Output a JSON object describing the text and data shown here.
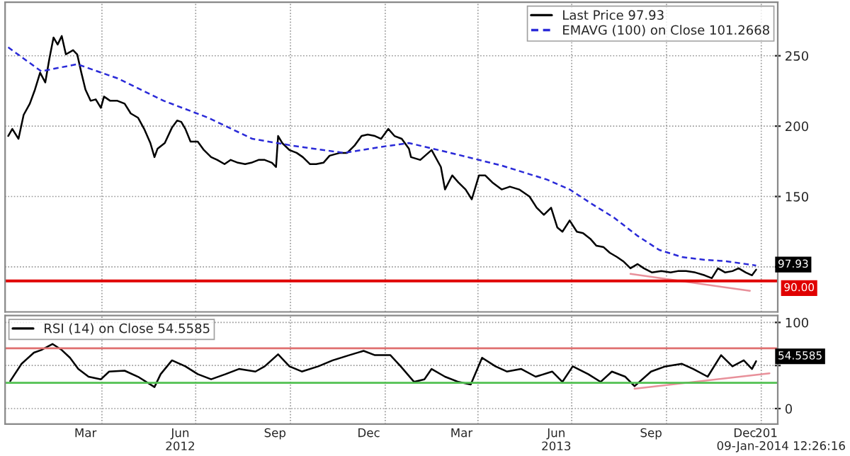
{
  "chart_data": [
    {
      "type": "line",
      "xlim": [
        "2011-12-29",
        "2014-01-17"
      ],
      "ylim": [
        68,
        288
      ],
      "xticks": [
        {
          "value": "2012-04-01",
          "label": null
        },
        {
          "value": "2012-07-01",
          "label": null
        },
        {
          "value": "2012-10-01",
          "label": null
        },
        {
          "value": "2013-01-01",
          "label": null
        },
        {
          "value": "2013-04-01",
          "label": null
        },
        {
          "value": "2013-07-01",
          "label": null
        },
        {
          "value": "2013-10-01",
          "label": null
        },
        {
          "value": "2014-01-01",
          "label": null
        }
      ],
      "yticks": [
        {
          "value": 100,
          "label": null
        },
        150,
        200,
        250
      ],
      "tick_labels": "y",
      "grid": true,
      "legend": "top right",
      "series": [
        {
          "name": "Last Price 97.93",
          "color": "#000000",
          "line_style": "solid",
          "x": [
            "2012-01-01",
            "2012-01-05",
            "2012-01-11",
            "2012-01-16",
            "2012-01-22",
            "2012-01-27",
            "2012-02-01",
            "2012-02-06",
            "2012-02-10",
            "2012-02-14",
            "2012-02-18",
            "2012-02-22",
            "2012-02-26",
            "2012-03-04",
            "2012-03-08",
            "2012-03-12",
            "2012-03-16",
            "2012-03-21",
            "2012-03-26",
            "2012-03-31",
            "2012-04-03",
            "2012-04-09",
            "2012-04-16",
            "2012-04-23",
            "2012-04-29",
            "2012-05-06",
            "2012-05-12",
            "2012-05-18",
            "2012-05-22",
            "2012-05-25",
            "2012-06-01",
            "2012-06-08",
            "2012-06-13",
            "2012-06-17",
            "2012-06-21",
            "2012-06-26",
            "2012-07-03",
            "2012-07-09",
            "2012-07-16",
            "2012-07-22",
            "2012-07-29",
            "2012-08-04",
            "2012-08-11",
            "2012-08-18",
            "2012-08-24",
            "2012-08-31",
            "2012-09-06",
            "2012-09-13",
            "2012-09-17",
            "2012-09-19",
            "2012-09-23",
            "2012-09-30",
            "2012-10-07",
            "2012-10-13",
            "2012-10-20",
            "2012-10-26",
            "2012-11-02",
            "2012-11-08",
            "2012-11-18",
            "2012-11-25",
            "2012-12-02",
            "2012-12-09",
            "2012-12-15",
            "2012-12-22",
            "2012-12-28",
            "2013-01-04",
            "2013-01-10",
            "2013-01-17",
            "2013-01-24",
            "2013-01-26",
            "2013-02-04",
            "2013-02-15",
            "2013-02-24",
            "2013-02-28",
            "2013-03-07",
            "2013-03-13",
            "2013-03-20",
            "2013-03-26",
            "2013-04-02",
            "2013-04-08",
            "2013-04-15",
            "2013-04-24",
            "2013-05-02",
            "2013-05-11",
            "2013-05-21",
            "2013-05-28",
            "2013-06-04",
            "2013-06-11",
            "2013-06-17",
            "2013-06-22",
            "2013-06-29",
            "2013-07-06",
            "2013-07-12",
            "2013-07-19",
            "2013-07-25",
            "2013-08-01",
            "2013-08-07",
            "2013-08-14",
            "2013-08-20",
            "2013-08-27",
            "2013-09-03",
            "2013-09-09",
            "2013-09-17",
            "2013-09-26",
            "2013-10-05",
            "2013-10-12",
            "2013-10-20",
            "2013-10-29",
            "2013-11-07",
            "2013-11-14",
            "2013-11-20",
            "2013-11-27",
            "2013-12-04",
            "2013-12-10",
            "2013-12-17",
            "2013-12-23",
            "2013-12-27"
          ],
          "values": [
            193,
            198,
            191,
            208,
            216,
            226,
            238,
            231,
            248,
            263,
            258,
            264,
            251,
            254,
            251,
            238,
            226,
            218,
            219,
            213,
            221,
            218,
            218,
            216,
            209,
            206,
            198,
            188,
            178,
            184,
            188,
            199,
            204,
            203,
            198,
            189,
            189,
            183,
            178,
            176,
            173,
            176,
            174,
            173,
            174,
            176,
            176,
            174,
            171,
            193,
            188,
            183,
            181,
            178,
            173,
            173,
            174,
            179,
            181,
            181,
            186,
            193,
            194,
            193,
            191,
            198,
            193,
            191,
            184,
            178,
            176,
            183,
            171,
            155,
            165,
            160,
            155,
            148,
            165,
            165,
            160,
            155,
            157,
            155,
            150,
            142,
            137,
            142,
            128,
            125,
            133,
            125,
            124,
            120,
            115,
            114,
            110,
            107,
            104,
            99,
            102,
            99,
            96,
            97,
            96,
            97,
            97,
            96,
            94,
            92,
            99,
            96,
            97,
            99,
            96,
            94,
            98
          ]
        },
        {
          "name": "EMAVG (100) on Close 101.2668",
          "color": "#2a2ad8",
          "line_style": "dashed",
          "x": [
            "2012-01-01",
            "2012-02-02",
            "2012-03-08",
            "2012-04-16",
            "2012-05-31",
            "2012-07-13",
            "2012-08-25",
            "2012-10-04",
            "2012-11-22",
            "2013-01-04",
            "2013-01-24",
            "2013-03-11",
            "2013-04-24",
            "2013-06-07",
            "2013-06-29",
            "2013-07-20",
            "2013-08-11",
            "2013-09-03",
            "2013-09-24",
            "2013-10-16",
            "2013-11-07",
            "2013-11-28",
            "2013-12-27"
          ],
          "values": [
            256,
            239,
            244,
            234,
            218,
            206,
            191,
            186,
            181,
            186,
            188,
            180,
            172,
            162,
            155,
            145,
            135,
            122,
            112,
            107,
            105,
            104,
            101
          ]
        },
        {
          "color": "#e8909a",
          "line_style": "solid",
          "x": [
            "2013-08-27",
            "2013-12-21"
          ],
          "values": [
            95,
            83
          ]
        }
      ],
      "ref_lines": [
        {
          "axis": "y",
          "value": 90,
          "label": "90.00",
          "color": "#e00000"
        }
      ],
      "annotations": [
        {
          "text": "97.93",
          "x": "2013-12-27",
          "y": 97.93
        }
      ]
    },
    {
      "type": "line",
      "xlim": [
        "2011-12-29",
        "2014-01-17"
      ],
      "ylim": [
        -18,
        108
      ],
      "xticks": [
        {
          "value": "2012-04-01",
          "label": null
        },
        {
          "value": "2012-07-01",
          "label": null
        },
        {
          "value": "2012-10-01",
          "label": null
        },
        {
          "value": "2013-01-01",
          "label": null
        },
        {
          "value": "2013-04-01",
          "label": null
        },
        {
          "value": "2013-07-01",
          "label": null
        },
        {
          "value": "2013-10-01",
          "label": null
        },
        {
          "value": "2014-01-01",
          "label": null
        },
        {
          "value": "2012-03-16",
          "label": "Mar"
        },
        {
          "value": "2012-06-16",
          "label": "Jun\n2012"
        },
        {
          "value": "2012-09-16",
          "label": "Sep"
        },
        {
          "value": "2012-12-16",
          "label": "Dec"
        },
        {
          "value": "2013-03-16",
          "label": "Mar"
        },
        {
          "value": "2013-06-16",
          "label": "Jun\n2013"
        },
        {
          "value": "2013-09-16",
          "label": "Sep"
        },
        {
          "value": "2013-12-16",
          "label": "Dec"
        },
        {
          "value": "2014-01-06",
          "label": "201"
        }
      ],
      "yticks": [
        0,
        {
          "value": 50,
          "label": null
        },
        100
      ],
      "grid": true,
      "legend": "top left",
      "series": [
        {
          "name": "RSI (14) on Close 54.5585",
          "color": "#000000",
          "line_style": "solid",
          "x": [
            "2012-01-03",
            "2012-01-14",
            "2012-01-26",
            "2012-02-02",
            "2012-02-13",
            "2012-02-22",
            "2012-03-01",
            "2012-03-09",
            "2012-03-19",
            "2012-03-31",
            "2012-04-08",
            "2012-04-23",
            "2012-05-06",
            "2012-05-22",
            "2012-05-28",
            "2012-06-08",
            "2012-06-21",
            "2012-07-03",
            "2012-07-16",
            "2012-07-30",
            "2012-08-12",
            "2012-08-28",
            "2012-09-06",
            "2012-09-19",
            "2012-09-30",
            "2012-10-12",
            "2012-10-28",
            "2012-11-11",
            "2012-11-27",
            "2012-12-11",
            "2012-12-22",
            "2013-01-06",
            "2013-01-16",
            "2013-01-29",
            "2013-02-08",
            "2013-02-15",
            "2013-02-28",
            "2013-03-13",
            "2013-03-25",
            "2013-04-05",
            "2013-04-18",
            "2013-04-29",
            "2013-05-13",
            "2013-05-27",
            "2013-06-12",
            "2013-06-22",
            "2013-07-02",
            "2013-07-17",
            "2013-07-29",
            "2013-08-09",
            "2013-08-22",
            "2013-08-31",
            "2013-09-16",
            "2013-09-30",
            "2013-10-16",
            "2013-10-27",
            "2013-11-10",
            "2013-11-23",
            "2013-12-04",
            "2013-12-15",
            "2013-12-23",
            "2013-12-27"
          ],
          "values": [
            32,
            52,
            65,
            68,
            75,
            68,
            59,
            46,
            37,
            34,
            43,
            44,
            37,
            25,
            40,
            56,
            49,
            40,
            34,
            40,
            46,
            43,
            49,
            63,
            49,
            43,
            49,
            56,
            62,
            67,
            62,
            62,
            49,
            31,
            34,
            46,
            37,
            31,
            28,
            59,
            49,
            43,
            46,
            37,
            43,
            31,
            49,
            40,
            31,
            43,
            37,
            26,
            43,
            49,
            52,
            46,
            37,
            62,
            49,
            56,
            46,
            55
          ]
        },
        {
          "color": "#e8909a",
          "line_style": "solid",
          "x": [
            "2013-08-31",
            "2014-01-09"
          ],
          "values": [
            23,
            41
          ]
        }
      ],
      "ref_lines": [
        {
          "axis": "y",
          "value": 70,
          "color": "#e07070"
        },
        {
          "axis": "y",
          "value": 30,
          "color": "#50c050"
        }
      ],
      "annotations": [
        {
          "text": "54.5585",
          "x": "2013-12-27",
          "y": 54.5585
        },
        "09-Jan-2014 12:26:16"
      ]
    }
  ]
}
